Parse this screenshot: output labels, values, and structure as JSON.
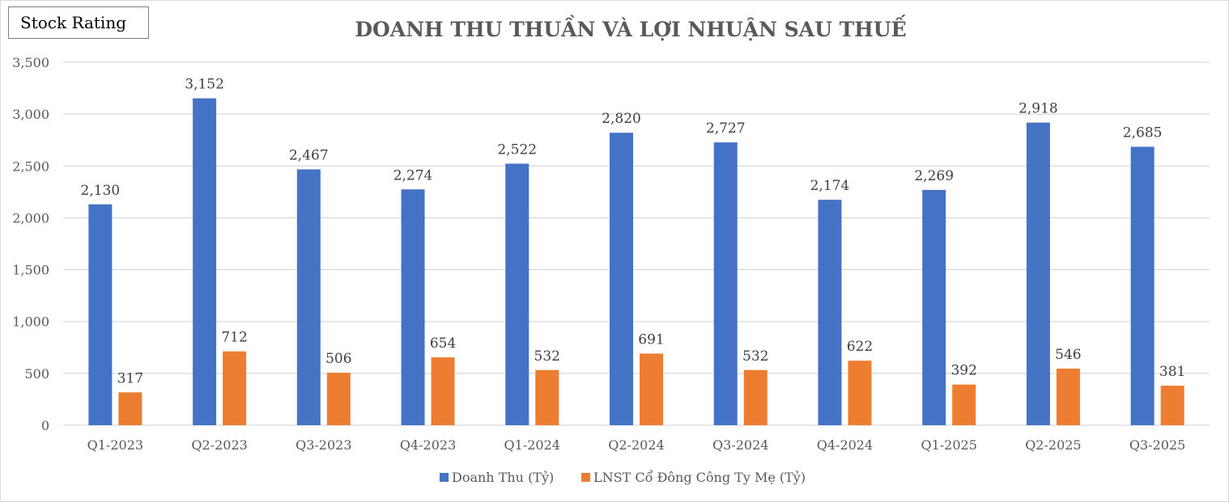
{
  "badge": {
    "label": "Stock Rating"
  },
  "chart_data": {
    "type": "bar",
    "title": "DOANH THU THUẦN VÀ LỢI NHUẬN SAU THUẾ",
    "categories": [
      "Q1-2023",
      "Q2-2023",
      "Q3-2023",
      "Q4-2023",
      "Q1-2024",
      "Q2-2024",
      "Q3-2024",
      "Q4-2024",
      "Q1-2025",
      "Q2-2025",
      "Q3-2025"
    ],
    "series": [
      {
        "name": "Doanh Thu (Tỷ)",
        "color": "#4472c4",
        "values": [
          2130,
          3152,
          2467,
          2274,
          2522,
          2820,
          2727,
          2174,
          2269,
          2918,
          2685
        ]
      },
      {
        "name": "LNST Cổ Đông Công Ty Mẹ (Tỷ)",
        "color": "#ed7d31",
        "values": [
          317,
          712,
          506,
          654,
          532,
          691,
          532,
          622,
          392,
          546,
          381
        ]
      }
    ],
    "ylim": [
      0,
      3500
    ],
    "yticks": [
      0,
      500,
      1000,
      1500,
      2000,
      2500,
      3000,
      3500
    ],
    "grid": true,
    "legend_position": "bottom"
  }
}
